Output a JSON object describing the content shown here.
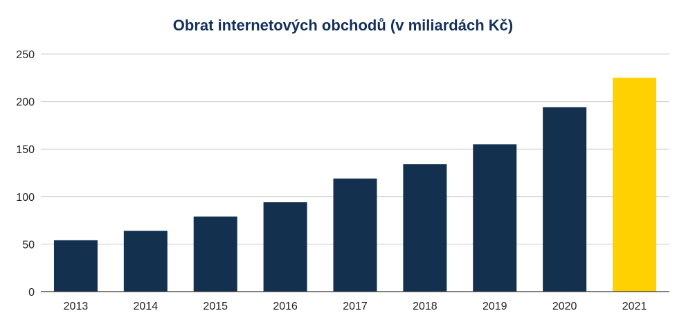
{
  "chart_data": {
    "type": "bar",
    "title": "Obrat internetových obchodů (v miliardách Kč)",
    "xlabel": "",
    "ylabel": "",
    "categories": [
      "2013",
      "2014",
      "2015",
      "2016",
      "2017",
      "2018",
      "2019",
      "2020",
      "2021"
    ],
    "values": [
      54,
      64,
      79,
      94,
      119,
      134,
      155,
      194,
      225
    ],
    "ylim": [
      0,
      250
    ],
    "yticks": [
      0,
      50,
      100,
      150,
      200,
      250
    ],
    "grid": true,
    "legend": "none",
    "colors": {
      "bar": "#13304f",
      "highlight": "#ffd100",
      "grid": "#cccccc",
      "axis": "#333333",
      "title": "#14305a"
    },
    "highlight_index": 8
  }
}
